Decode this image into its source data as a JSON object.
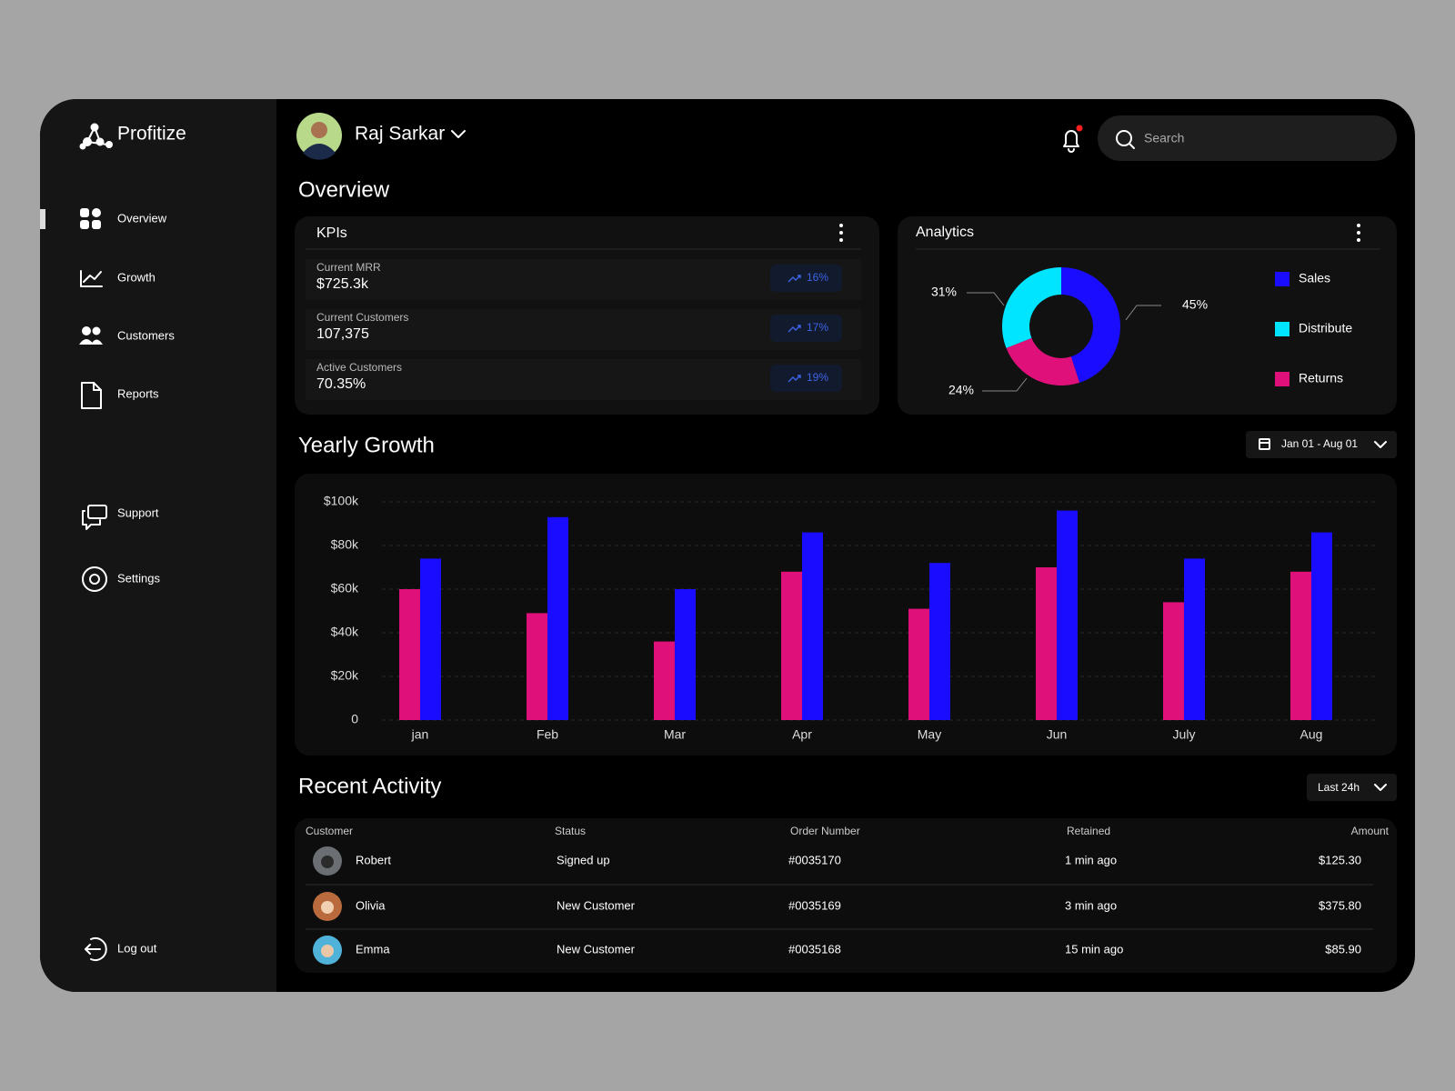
{
  "brand": "Profitize",
  "nav": [
    "Overview",
    "Growth",
    "Customers",
    "Reports",
    "Support",
    "Settings"
  ],
  "logout": "Log out",
  "user": "Raj Sarkar",
  "search_placeholder": "Search",
  "overview_title": "Overview",
  "kpis": {
    "title": "KPIs",
    "items": [
      {
        "label": "Current MRR",
        "value": "$725.3k",
        "change": "16%"
      },
      {
        "label": "Current Customers",
        "value": "107,375",
        "change": "17%"
      },
      {
        "label": "Active Customers",
        "value": "70.35%",
        "change": "19%"
      }
    ]
  },
  "date_range": "Jan 01 - Aug 01",
  "activity_title": "Recent Activity",
  "activity_range": "Last 24h",
  "table": {
    "columns": [
      "Customer",
      "Status",
      "Order Number",
      "Retained",
      "Amount"
    ],
    "rows": [
      [
        "Robert",
        "Signed up",
        "#0035170",
        "1 min ago",
        "$125.30"
      ],
      [
        "Olivia",
        "New Customer",
        "#0035169",
        "3 min ago",
        "$375.80"
      ],
      [
        "Emma",
        "New Customer",
        "#0035168",
        "15 min ago",
        "$85.90"
      ]
    ]
  },
  "chart_data": [
    {
      "type": "pie",
      "title": "Analytics",
      "categories": [
        "Sales",
        "Distribute",
        "Returns"
      ],
      "values": [
        45,
        31,
        24
      ],
      "value_labels": [
        "45%",
        "31%",
        "24%"
      ],
      "colors": [
        "#1a0dff",
        "#00e5ff",
        "#e0107a"
      ],
      "donut": true
    },
    {
      "type": "bar",
      "title": "Yearly Growth",
      "categories": [
        "jan",
        "Feb",
        "Mar",
        "Apr",
        "May",
        "Jun",
        "July",
        "Aug"
      ],
      "series": [
        {
          "color": "#e0107a",
          "values": [
            60,
            49,
            36,
            68,
            51,
            70,
            54,
            68
          ]
        },
        {
          "color": "#1a0dff",
          "values": [
            74,
            93,
            60,
            86,
            72,
            96,
            74,
            86
          ]
        }
      ],
      "ylim": [
        0,
        100
      ],
      "yticks": [
        0,
        {
          "value": 20,
          "label": "$20k"
        },
        {
          "value": 40,
          "label": "$40k"
        },
        {
          "value": 60,
          "label": "$60k"
        },
        {
          "value": 80,
          "label": "$80k"
        },
        {
          "value": 100,
          "label": "$100k"
        }
      ],
      "grid": true
    }
  ]
}
